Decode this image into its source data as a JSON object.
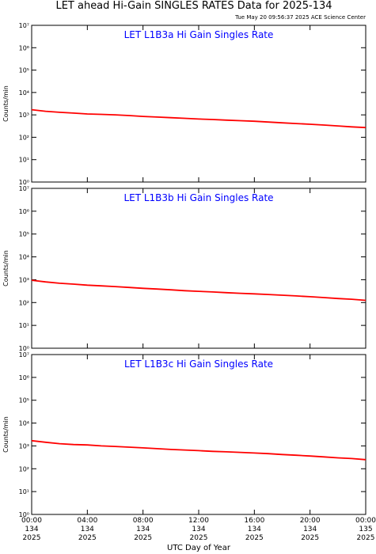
{
  "title": "LET ahead Hi-Gain SINGLES RATES Data for 2025-134",
  "subtitle": "Tue May 20 09:56:37 2025 ACE Science Center",
  "x_label": "UTC Day of Year",
  "chart_data": [
    {
      "type": "line",
      "title": "LET L1B3a Hi Gain Singles Rate",
      "title_color": "#0000ff",
      "y_label": "Counts/min",
      "color": "#ff0000",
      "log_y": true,
      "x": [
        0,
        1,
        2,
        3,
        4,
        5,
        6,
        7,
        8,
        9,
        10,
        11,
        12,
        13,
        14,
        15,
        16,
        17,
        18,
        19,
        20,
        21,
        22,
        23,
        24
      ],
      "values": [
        1700,
        1450,
        1300,
        1200,
        1100,
        1050,
        1000,
        930,
        850,
        800,
        750,
        700,
        650,
        620,
        580,
        550,
        520,
        480,
        440,
        410,
        380,
        350,
        320,
        290,
        270
      ],
      "xlim": [
        0,
        24
      ],
      "xticks": [
        0,
        4,
        8,
        12,
        16,
        20,
        24
      ],
      "ylim": [
        1,
        10000000
      ],
      "yticks": [
        {
          "value": 1,
          "label": "10⁰"
        },
        {
          "value": 10,
          "label": "10¹"
        },
        {
          "value": 100,
          "label": "10²"
        },
        {
          "value": 1000,
          "label": "10³"
        },
        {
          "value": 10000,
          "label": "10⁴"
        },
        {
          "value": 100000,
          "label": "10⁵"
        },
        {
          "value": 1000000,
          "label": "10⁶"
        },
        {
          "value": 10000000,
          "label": "10⁷"
        }
      ]
    },
    {
      "type": "line",
      "title": "LET L1B3b Hi Gain Singles Rate",
      "title_color": "#0000ff",
      "y_label": "Counts/min",
      "color": "#ff0000",
      "log_y": true,
      "x": [
        0,
        1,
        2,
        3,
        4,
        5,
        6,
        7,
        8,
        9,
        10,
        11,
        12,
        13,
        14,
        15,
        16,
        17,
        18,
        19,
        20,
        21,
        22,
        23,
        24
      ],
      "values": [
        950,
        800,
        700,
        640,
        580,
        540,
        500,
        460,
        420,
        390,
        360,
        330,
        310,
        290,
        270,
        255,
        240,
        225,
        210,
        195,
        180,
        165,
        150,
        140,
        125
      ],
      "xlim": [
        0,
        24
      ],
      "xticks": [
        0,
        4,
        8,
        12,
        16,
        20,
        24
      ],
      "ylim": [
        1,
        10000000
      ],
      "yticks": [
        {
          "value": 1,
          "label": "10⁰"
        },
        {
          "value": 10,
          "label": "10¹"
        },
        {
          "value": 100,
          "label": "10²"
        },
        {
          "value": 1000,
          "label": "10³"
        },
        {
          "value": 10000,
          "label": "10⁴"
        },
        {
          "value": 100000,
          "label": "10⁵"
        },
        {
          "value": 1000000,
          "label": "10⁶"
        },
        {
          "value": 10000000,
          "label": "10⁷"
        }
      ]
    },
    {
      "type": "line",
      "title": "LET L1B3c Hi Gain Singles Rate",
      "title_color": "#0000ff",
      "y_label": "Counts/min",
      "color": "#ff0000",
      "log_y": true,
      "x": [
        0,
        1,
        2,
        3,
        4,
        5,
        6,
        7,
        8,
        9,
        10,
        11,
        12,
        13,
        14,
        15,
        16,
        17,
        18,
        19,
        20,
        21,
        22,
        23,
        24
      ],
      "values": [
        1700,
        1450,
        1250,
        1150,
        1100,
        1000,
        950,
        880,
        820,
        760,
        700,
        660,
        620,
        580,
        550,
        520,
        490,
        460,
        420,
        390,
        360,
        330,
        300,
        280,
        250
      ],
      "xlim": [
        0,
        24
      ],
      "xticks": [
        {
          "value": 0,
          "label": "00:00\n134\n2025"
        },
        {
          "value": 4,
          "label": "04:00\n134\n2025"
        },
        {
          "value": 8,
          "label": "08:00\n134\n2025"
        },
        {
          "value": 12,
          "label": "12:00\n134\n2025"
        },
        {
          "value": 16,
          "label": "16:00\n134\n2025"
        },
        {
          "value": 20,
          "label": "20:00\n134\n2025"
        },
        {
          "value": 24,
          "label": "00:00\n135\n2025"
        }
      ],
      "ylim": [
        1,
        10000000
      ],
      "yticks": [
        {
          "value": 1,
          "label": "10⁰"
        },
        {
          "value": 10,
          "label": "10¹"
        },
        {
          "value": 100,
          "label": "10²"
        },
        {
          "value": 1000,
          "label": "10³"
        },
        {
          "value": 10000,
          "label": "10⁴"
        },
        {
          "value": 100000,
          "label": "10⁵"
        },
        {
          "value": 1000000,
          "label": "10⁶"
        },
        {
          "value": 10000000,
          "label": "10⁷"
        }
      ]
    }
  ]
}
